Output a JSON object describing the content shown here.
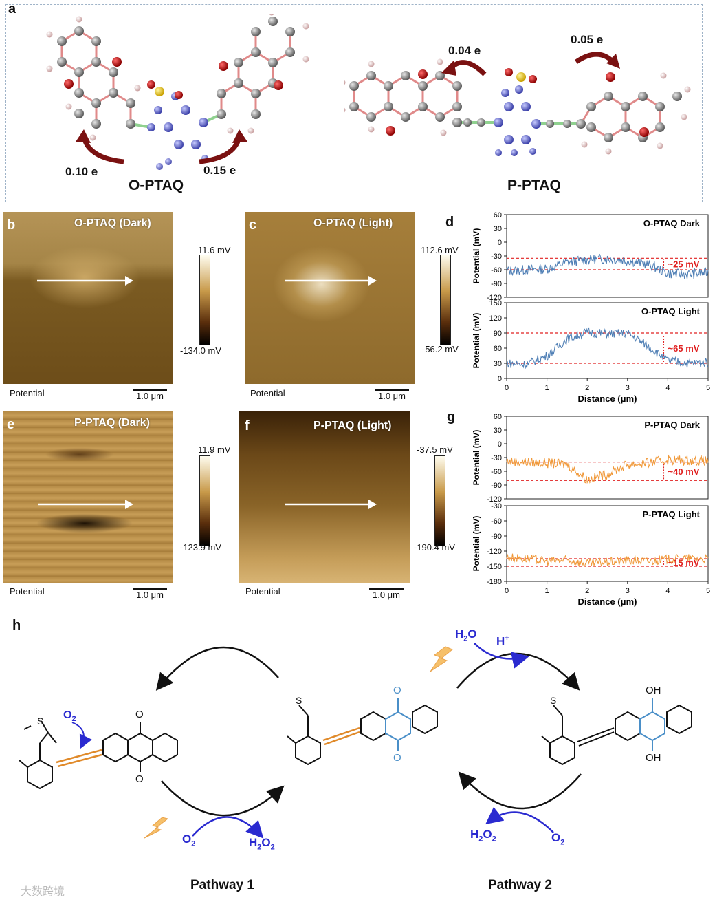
{
  "panels": {
    "a": "a",
    "b": "b",
    "c": "c",
    "d": "d",
    "e": "e",
    "f": "f",
    "g": "g",
    "h": "h"
  },
  "panel_a": {
    "o_ptaq": {
      "name": "O-PTAQ",
      "charge_left": "0.10 e",
      "charge_right": "0.15 e"
    },
    "p_ptaq": {
      "name": "P-PTAQ",
      "charge_left": "0.04 e",
      "charge_right": "0.05 e"
    }
  },
  "kpfm": {
    "b": {
      "title": "O-PTAQ (Dark)",
      "max": "11.6 mV",
      "min": "-134.0 mV",
      "caption": "Potential",
      "scale": "1.0 μm"
    },
    "c": {
      "title": "O-PTAQ (Light)",
      "max": "112.6 mV",
      "min": "-56.2 mV",
      "caption": "Potential",
      "scale": "1.0 μm"
    },
    "e": {
      "title": "P-PTAQ (Dark)",
      "max": "11.9 mV",
      "min": "-123.9 mV",
      "caption": "Potential",
      "scale": "1.0 μm"
    },
    "f": {
      "title": "P-PTAQ (Light)",
      "max": "-37.5 mV",
      "min": "-190.4 mV",
      "caption": "Potential",
      "scale": "1.0 μm"
    }
  },
  "chart_data": [
    {
      "type": "line",
      "id": "d1",
      "title": "O-PTAQ Dark",
      "ylabel": "Potential (mV)",
      "xlabel": "",
      "xlim": [
        0,
        5
      ],
      "ylim": [
        -120,
        60
      ],
      "yticks": [
        -120,
        -90,
        -60,
        -30,
        0,
        30,
        60
      ],
      "annotation": "~25 mV",
      "ref_lines": [
        -35,
        -60
      ],
      "color": "#4f7fb5",
      "series": [
        {
          "name": "O-PTAQ Dark",
          "x": [
            0,
            0.5,
            1.0,
            1.5,
            2.0,
            2.5,
            3.0,
            3.5,
            4.0,
            4.5,
            5.0
          ],
          "y": [
            -62,
            -60,
            -58,
            -44,
            -38,
            -36,
            -40,
            -48,
            -68,
            -70,
            -66
          ]
        }
      ]
    },
    {
      "type": "line",
      "id": "d2",
      "title": "O-PTAQ Light",
      "ylabel": "Potential (mV)",
      "xlabel": "Distance (μm)",
      "xlim": [
        0,
        5
      ],
      "ylim": [
        0,
        150
      ],
      "yticks": [
        0,
        30,
        60,
        90,
        120,
        150
      ],
      "xticks": [
        0,
        1,
        2,
        3,
        4,
        5
      ],
      "annotation": "~65 mV",
      "ref_lines": [
        90,
        30
      ],
      "color": "#4f7fb5",
      "series": [
        {
          "name": "O-PTAQ Light",
          "x": [
            0,
            0.5,
            1.0,
            1.5,
            2.0,
            2.5,
            3.0,
            3.5,
            4.0,
            4.5,
            5.0
          ],
          "y": [
            30,
            28,
            45,
            78,
            92,
            88,
            90,
            65,
            35,
            30,
            32
          ]
        }
      ]
    },
    {
      "type": "line",
      "id": "g1",
      "title": "P-PTAQ Dark",
      "ylabel": "Potential (mV)",
      "xlabel": "",
      "xlim": [
        0,
        5
      ],
      "ylim": [
        -120,
        60
      ],
      "yticks": [
        -120,
        -90,
        -60,
        -30,
        0,
        30,
        60
      ],
      "annotation": "~40 mV",
      "ref_lines": [
        -40,
        -80
      ],
      "color": "#f0993a",
      "series": [
        {
          "name": "P-PTAQ Dark",
          "x": [
            0,
            0.5,
            1.0,
            1.5,
            2.0,
            2.5,
            3.0,
            3.5,
            4.0,
            4.5,
            5.0
          ],
          "y": [
            -38,
            -40,
            -42,
            -45,
            -78,
            -66,
            -45,
            -42,
            -35,
            -36,
            -38
          ]
        }
      ]
    },
    {
      "type": "line",
      "id": "g2",
      "title": "P-PTAQ Light",
      "ylabel": "Potential (mV)",
      "xlabel": "Distance (μm)",
      "xlim": [
        0,
        5
      ],
      "ylim": [
        -180,
        -30
      ],
      "yticks": [
        -180,
        -150,
        -120,
        -90,
        -60,
        -30
      ],
      "xticks": [
        0,
        1,
        2,
        3,
        4,
        5
      ],
      "annotation": "~15 mV",
      "ref_lines": [
        -135,
        -150
      ],
      "color": "#f0993a",
      "series": [
        {
          "name": "P-PTAQ Light",
          "x": [
            0,
            0.5,
            1.0,
            1.5,
            2.0,
            2.5,
            3.0,
            3.5,
            4.0,
            4.5,
            5.0
          ],
          "y": [
            -132,
            -135,
            -140,
            -138,
            -145,
            -142,
            -138,
            -140,
            -136,
            -134,
            -136
          ]
        }
      ]
    }
  ],
  "panel_h": {
    "pathway1": "Pathway 1",
    "pathway2": "Pathway 2",
    "o2": "O",
    "h2o2_h": "H",
    "h2o2_o": "O",
    "h2o": "H",
    "h2o_o": "O",
    "hplus": "H",
    "plus": "+",
    "sub2": "2",
    "oh": "OH",
    "o_atom": "O",
    "s_atom": "S"
  },
  "watermark": "大数跨境"
}
